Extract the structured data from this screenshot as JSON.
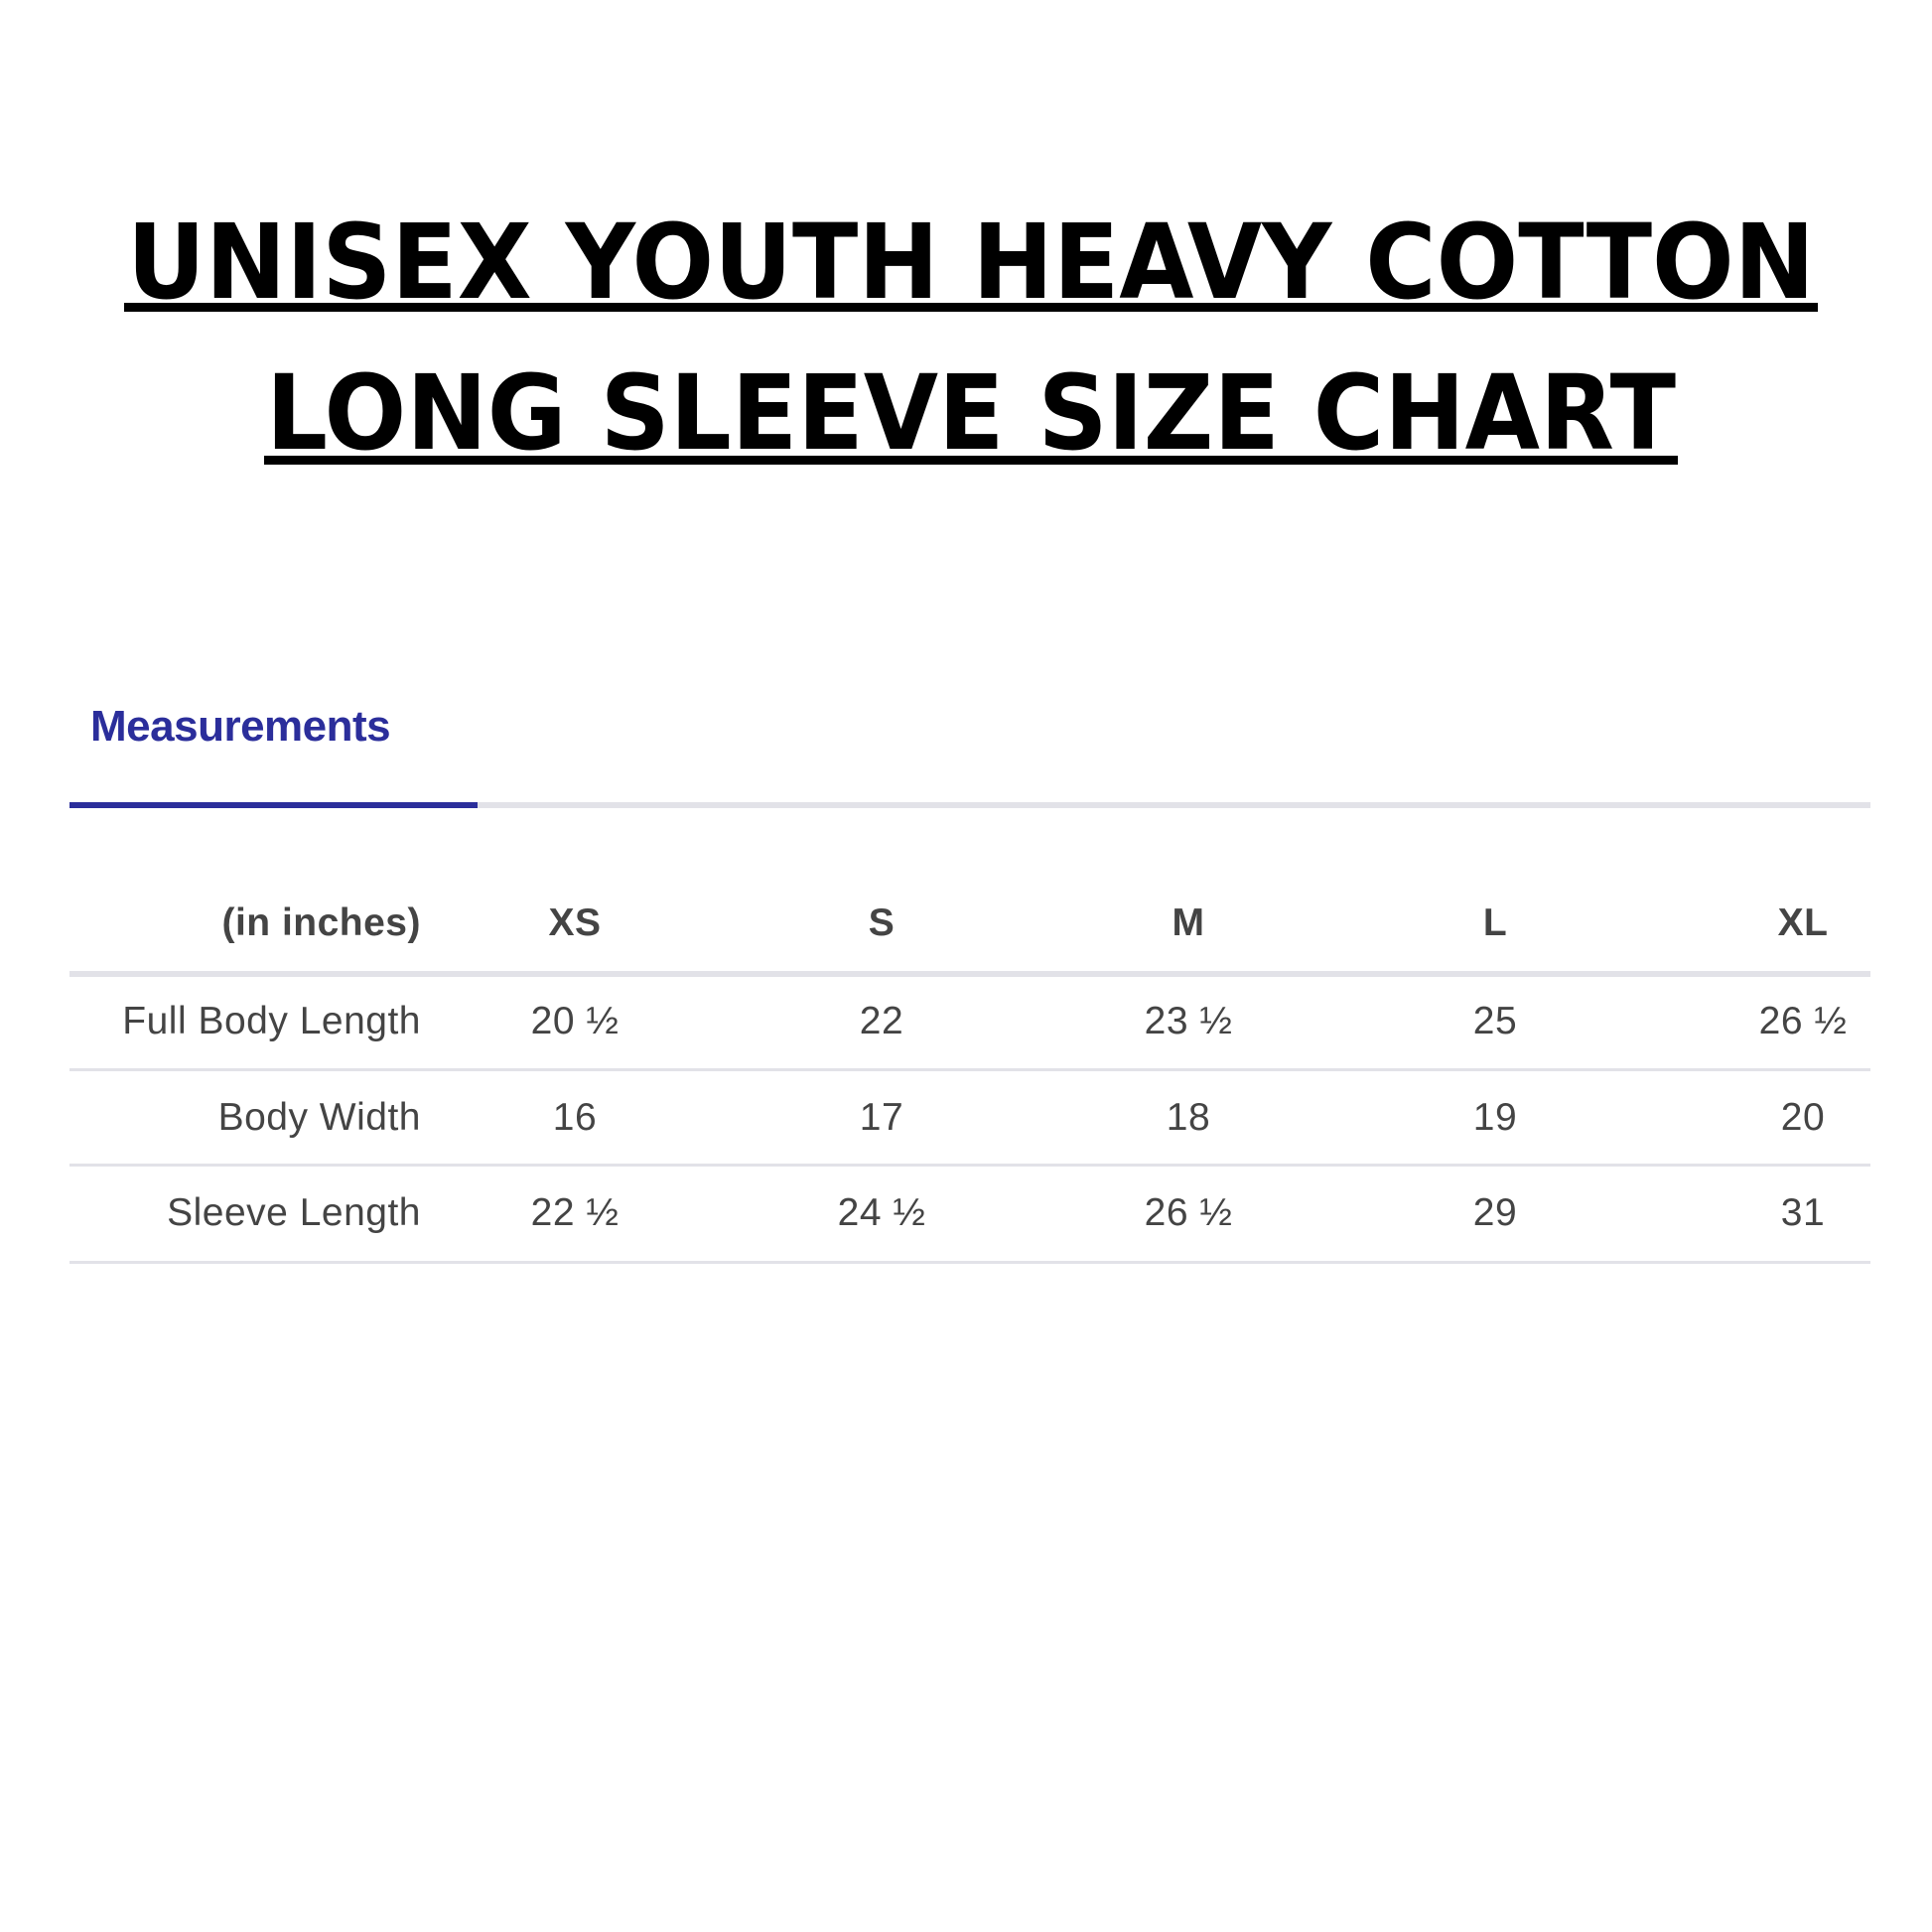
{
  "title": {
    "line1": "UNISEX YOUTH HEAVY COTTON",
    "line2": "LONG SLEEVE SIZE CHART"
  },
  "tabs": [
    {
      "label": "Measurements",
      "active": true
    }
  ],
  "colors": {
    "accent": "#2b2e9b",
    "text": "#444444",
    "divider": "#e2e2e8"
  },
  "table": {
    "unit_label": "(in inches)",
    "sizes": [
      "XS",
      "S",
      "M",
      "L",
      "XL"
    ],
    "rows": [
      {
        "label": "Full Body Length",
        "values": [
          "20 ½",
          "22",
          "23 ½",
          "25",
          "26 ½"
        ]
      },
      {
        "label": "Body Width",
        "values": [
          "16",
          "17",
          "18",
          "19",
          "20"
        ]
      },
      {
        "label": "Sleeve Length",
        "values": [
          "22 ½",
          "24 ½",
          "26 ½",
          "29",
          "31"
        ]
      }
    ]
  }
}
